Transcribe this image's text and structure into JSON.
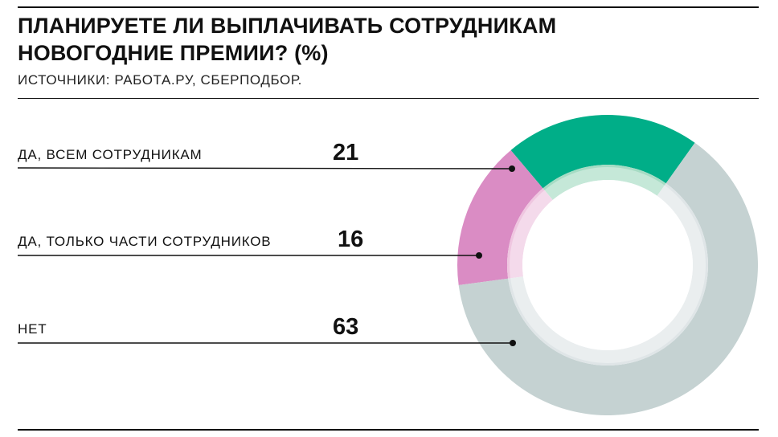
{
  "header": {
    "title_line1": "ПЛАНИРУЕТЕ ЛИ ВЫПЛАЧИВАТЬ СОТРУДНИКАМ",
    "title_line2": "НОВОГОДНИЕ ПРЕМИИ? (%)",
    "source": "ИСТОЧНИКИ: РАБОТА.РУ, СБЕРПОДБОР."
  },
  "chart_data": {
    "type": "pie",
    "title": "ПЛАНИРУЕТЕ ЛИ ВЫПЛАЧИВАТЬ СОТРУДНИКАМ НОВОГОДНИЕ ПРЕМИИ? (%)",
    "unit": "%",
    "donut": true,
    "categories": [
      "ДА, ВСЕМ СОТРУДНИКАМ",
      "ДА, ТОЛЬКО ЧАСТИ СОТРУДНИКОВ",
      "НЕТ"
    ],
    "values": [
      21,
      16,
      63
    ],
    "colors": [
      "#00ae88",
      "#da8cc4",
      "#c5d2d2"
    ],
    "inner_ring_colors": [
      "#a6dcc4",
      "#efc6e0",
      "#dfe5e7"
    ]
  }
}
